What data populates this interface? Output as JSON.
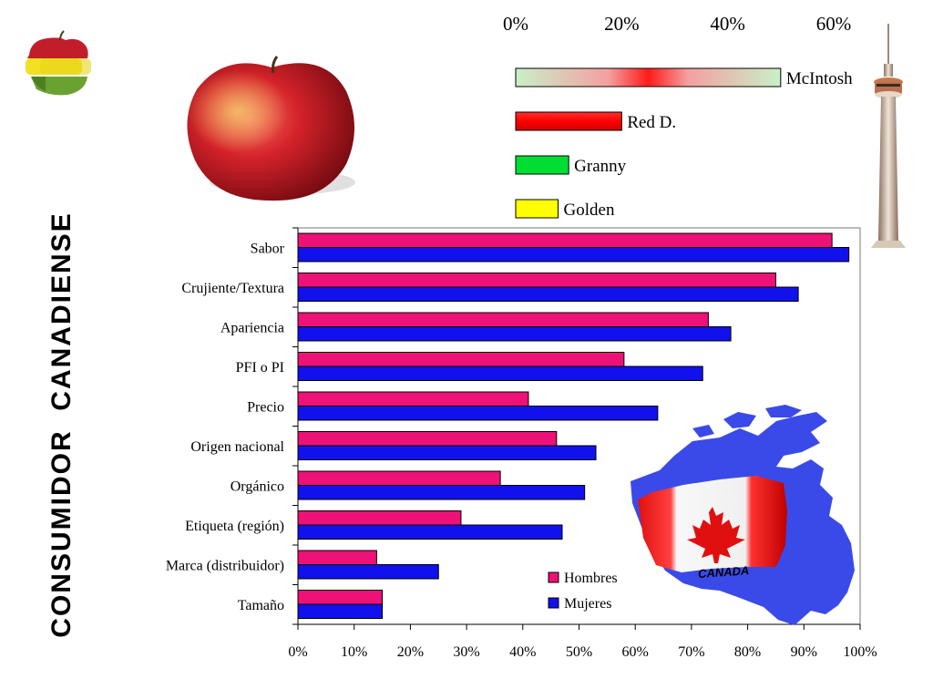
{
  "page_title": "CONSUMIDOR  CANADIENSE",
  "chart_data": [
    {
      "type": "bar",
      "orientation": "horizontal",
      "title": "",
      "xlabel": "",
      "ylabel": "",
      "xlim": [
        0,
        60
      ],
      "ticks": [
        "0%",
        "20%",
        "40%",
        "60%"
      ],
      "tick_values": [
        0,
        20,
        40,
        60
      ],
      "categories": [
        "McIntosh",
        "Red D.",
        "Granny",
        "Golden"
      ],
      "values": [
        50,
        20,
        10,
        8
      ],
      "colors": [
        "#c8f0c8",
        "#ff0000",
        "#00dd33",
        "#ffff00"
      ],
      "grid": false,
      "legend": "none"
    },
    {
      "type": "bar",
      "orientation": "horizontal",
      "title": "",
      "xlabel": "",
      "ylabel": "",
      "xlim": [
        0,
        100
      ],
      "ticks": [
        "0%",
        "10%",
        "20%",
        "30%",
        "40%",
        "50%",
        "60%",
        "70%",
        "80%",
        "90%",
        "100%"
      ],
      "tick_values": [
        0,
        10,
        20,
        30,
        40,
        50,
        60,
        70,
        80,
        90,
        100
      ],
      "categories": [
        "Sabor",
        "Crujiente/Textura",
        "Apariencia",
        "PFI o PI",
        "Precio",
        "Origen nacional",
        "Orgánico",
        "Etiqueta (región)",
        "Marca (distribuidor)",
        "Tamaño"
      ],
      "series": [
        {
          "name": "Hombres",
          "color": "#ee1177",
          "values": [
            95,
            85,
            73,
            58,
            41,
            46,
            36,
            29,
            14,
            15
          ]
        },
        {
          "name": "Mujeres",
          "color": "#1111ee",
          "values": [
            98,
            89,
            77,
            72,
            64,
            53,
            51,
            47,
            25,
            15
          ]
        }
      ],
      "grid": false,
      "legend": "bottom-right"
    }
  ],
  "images": {
    "top_left_logo": "split-apple-icon",
    "apple_photo": "red-apple-image",
    "tower": "cn-tower-image",
    "canada_map": "canada-map-flag-image",
    "map_label": "CANADA"
  }
}
